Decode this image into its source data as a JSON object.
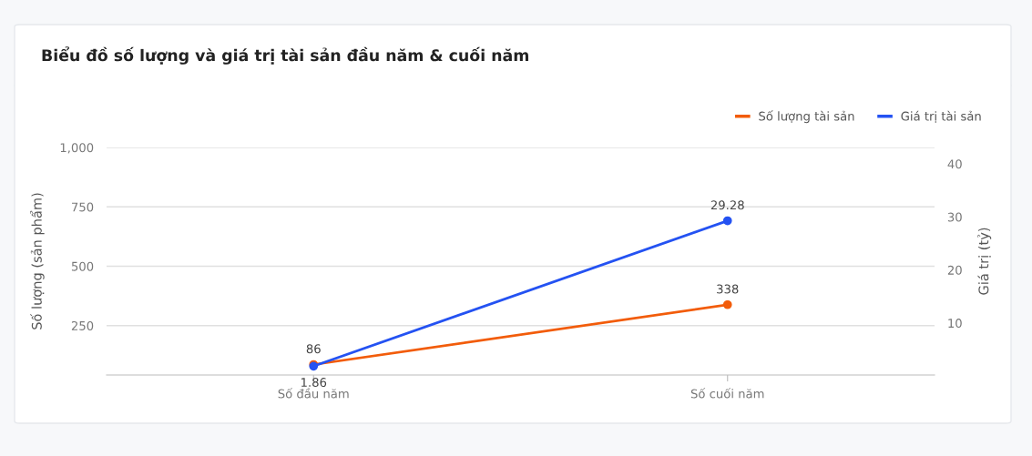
{
  "chart_data": {
    "type": "line",
    "title": "Biểu đồ số lượng và giá trị tài sản đầu năm & cuối năm",
    "categories": [
      "Số đầu năm",
      "Số cuối năm"
    ],
    "series": [
      {
        "name": "Số lượng tài sản",
        "color": "#f25c0a",
        "values": [
          86,
          338
        ]
      },
      {
        "name": "Giá trị tài sản",
        "color": "#2452f2",
        "values": [
          1.86,
          29.28
        ],
        "axis": "y2"
      }
    ],
    "ylabel": "Số lượng (sản phẩm)",
    "y2label": "Giá trị (tỷ)",
    "ylim": [
      42,
      1000
    ],
    "yticks": [
      250,
      500,
      750,
      {
        "value": 1000,
        "label": "1,000"
      }
    ],
    "y2lim": [
      0.2,
      43.1
    ],
    "y2ticks": [
      10,
      20,
      30,
      40
    ],
    "grid": "y",
    "legend": "top right",
    "marker": "circle",
    "line_style": "solid",
    "data_labels": true
  }
}
